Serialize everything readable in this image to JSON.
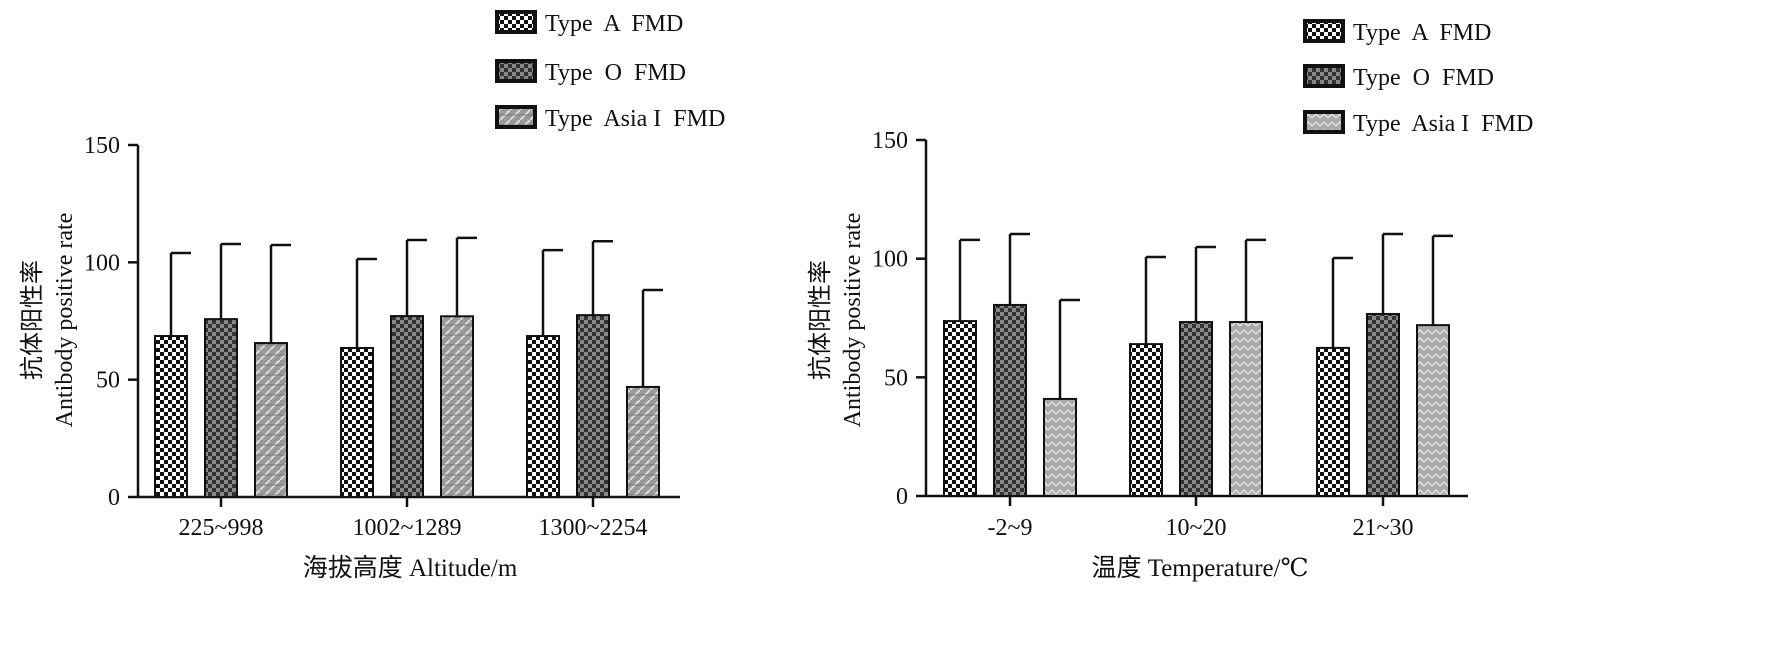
{
  "chart_data": [
    {
      "type": "bar",
      "ylabel_cn": "抗体阳性率",
      "ylabel": "Antibody positive rate",
      "xlabel": "海拔高度 Altitude/m",
      "ylim": [
        0,
        150
      ],
      "yticks": [
        "0",
        "50",
        "100",
        "150"
      ],
      "categories": [
        "225~998",
        "1002~1289",
        "1300~2254"
      ],
      "legend_position": "top-right",
      "series": [
        {
          "name": "Type  A  FMD",
          "pattern": "checker-small",
          "values": [
            68.6,
            63.5,
            68.6
          ],
          "error_upper": [
            104,
            101.4,
            105.2
          ]
        },
        {
          "name": "Type  O  FMD",
          "pattern": "checker-dark",
          "values": [
            75.8,
            77.1,
            77.5
          ],
          "error_upper": [
            107.8,
            109.5,
            109
          ]
        },
        {
          "name": "Type  Asia I  FMD",
          "pattern": "brick",
          "values": [
            65.6,
            77,
            46.9
          ],
          "error_upper": [
            107.4,
            110.4,
            88.2
          ]
        }
      ]
    },
    {
      "type": "bar",
      "ylabel_cn": "抗体阳性率",
      "ylabel": "Antibody positive rate",
      "xlabel": "温度 Temperature/℃",
      "ylim": [
        0,
        150
      ],
      "yticks": [
        "0",
        "50",
        "100",
        "150"
      ],
      "categories": [
        "-2~9",
        "10~20",
        "21~30"
      ],
      "legend_position": "top-right",
      "series": [
        {
          "name": "Type  A  FMD",
          "pattern": "checker-small",
          "values": [
            73.7,
            64,
            62.4
          ],
          "error_upper": [
            107.9,
            100.7,
            100.3
          ]
        },
        {
          "name": "Type  O  FMD",
          "pattern": "checker-dark",
          "values": [
            80.5,
            73.3,
            76.7
          ],
          "error_upper": [
            110.4,
            104.9,
            110.4
          ]
        },
        {
          "name": "Type  Asia I  FMD",
          "pattern": "zigzag",
          "values": [
            40.9,
            73.3,
            72
          ],
          "error_upper": [
            82.6,
            107.9,
            109.6
          ]
        }
      ]
    }
  ]
}
